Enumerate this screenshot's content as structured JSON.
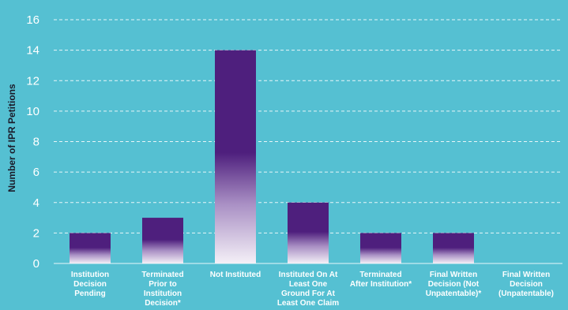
{
  "chart_data": {
    "type": "bar",
    "title": "",
    "xlabel": "",
    "ylabel": "Number of IPR Petitions",
    "ylim": [
      0,
      16
    ],
    "yticks": [
      0,
      2,
      4,
      6,
      8,
      10,
      12,
      14,
      16
    ],
    "grid": true,
    "categories": [
      "Institution Decision Pending",
      "Terminated Prior to Institution Decision*",
      "Not Instituted",
      "Instituted On At Least One Ground For At Least One Claim",
      "Terminated After Institution*",
      "Final Written Decision (Not Unpatentable)*",
      "Final Written Decision (Unpatentable)"
    ],
    "category_lines": [
      [
        "Institution",
        "Decision",
        "Pending"
      ],
      [
        "Terminated",
        "Prior to",
        "Institution",
        "Decision*"
      ],
      [
        "Not Instituted"
      ],
      [
        "Instituted On At",
        "Least One",
        "Ground For At",
        "Least One Claim"
      ],
      [
        "Terminated",
        "After Institution*"
      ],
      [
        "Final Written",
        "Decision (Not",
        "Unpatentable)*"
      ],
      [
        "Final Written",
        "Decision",
        "(Unpatentable)"
      ]
    ],
    "values": [
      2,
      3,
      14,
      4,
      2,
      2,
      0
    ],
    "colors": {
      "background": "#55c0d2",
      "bar_top": "#4e1f7d",
      "bar_bottom": "#f4f0f7",
      "grid": "#e8f6f9",
      "axis_text": "#ffffff",
      "ylabel_text": "#1b1b2a"
    }
  }
}
